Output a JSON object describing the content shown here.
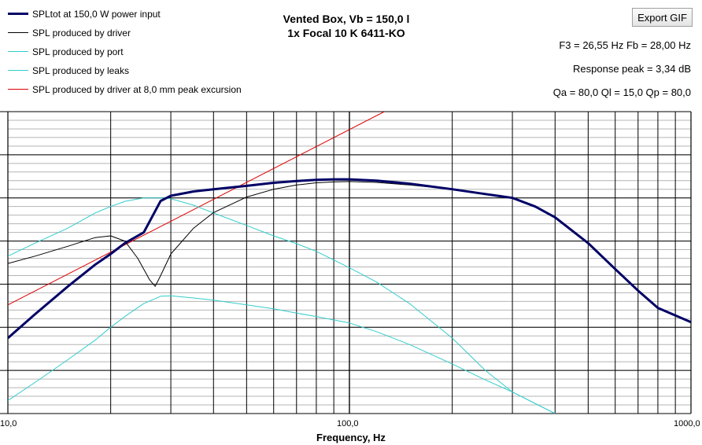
{
  "toolbar": {
    "export_label": "Export GIF"
  },
  "header": {
    "title_line1": "Vented Box, Vb = 150,0 l",
    "title_line2": "1x Focal 10 K 6411-KO",
    "info_line1": "F3 = 26,55 Hz  Fb = 28,00 Hz",
    "info_line2": "Response peak = 3,34 dB",
    "info_line3": "Qa = 80,0  Ql = 15,0  Qp = 80,0"
  },
  "legend": [
    {
      "label": "SPLtot at 150,0 W power input",
      "color": "#000066"
    },
    {
      "label": "SPL produced by driver",
      "color": "#000000"
    },
    {
      "label": "SPL produced by port",
      "color": "#33cccc"
    },
    {
      "label": "SPL produced by leaks",
      "color": "#33cccc"
    },
    {
      "label": "SPL produced by driver at 8,0 mm peak excursion",
      "color": "#dd0000"
    }
  ],
  "chart_data": {
    "type": "line",
    "xscale": "log",
    "xlim": [
      10,
      1000
    ],
    "xlabel": "Frequency, Hz",
    "xtick_labels": [
      "10,0",
      "100,0",
      "1000,0"
    ],
    "y_axis": "relative level, tick labels not visible",
    "ylim": [
      0,
      7
    ],
    "grid": true,
    "series": [
      {
        "name": "SPLtot at 150,0 W power input",
        "color": "#000066",
        "x": [
          10,
          12,
          15,
          18,
          20,
          22,
          25,
          28,
          30,
          35,
          40,
          50,
          60,
          70,
          80,
          90,
          100,
          120,
          150,
          200,
          250,
          300,
          350,
          400,
          500,
          600,
          700,
          800,
          1000
        ],
        "y": [
          1.75,
          2.3,
          2.95,
          3.45,
          3.7,
          3.95,
          4.2,
          4.93,
          5.05,
          5.15,
          5.2,
          5.28,
          5.35,
          5.39,
          5.42,
          5.43,
          5.43,
          5.4,
          5.33,
          5.2,
          5.09,
          5.0,
          4.8,
          4.55,
          3.95,
          3.35,
          2.85,
          2.45,
          2.12
        ]
      },
      {
        "name": "SPL produced by driver",
        "color": "#000000",
        "x": [
          10,
          12,
          15,
          18,
          20,
          22,
          24,
          26,
          27,
          28,
          30,
          35,
          40,
          50,
          60,
          70,
          80,
          90,
          100,
          120,
          150,
          200,
          250,
          300,
          350,
          400,
          500,
          600,
          700,
          800,
          1000
        ],
        "y": [
          3.48,
          3.65,
          3.88,
          4.08,
          4.12,
          4.0,
          3.6,
          3.1,
          2.95,
          3.2,
          3.7,
          4.3,
          4.66,
          5.02,
          5.2,
          5.3,
          5.35,
          5.37,
          5.38,
          5.36,
          5.3,
          5.2,
          5.09,
          5.0,
          4.8,
          4.55,
          3.95,
          3.35,
          2.85,
          2.45,
          2.12
        ]
      },
      {
        "name": "SPL produced by port",
        "color": "#33cccc",
        "x": [
          10,
          12,
          15,
          18,
          20,
          22,
          25,
          28,
          30,
          35,
          40,
          50,
          60,
          70,
          80,
          100,
          120,
          150,
          200,
          250,
          300,
          400
        ],
        "y": [
          3.65,
          3.95,
          4.3,
          4.65,
          4.8,
          4.92,
          5.0,
          5.0,
          4.98,
          4.83,
          4.65,
          4.36,
          4.12,
          3.94,
          3.76,
          3.38,
          3.05,
          2.55,
          1.75,
          1.0,
          0.5,
          0.0
        ]
      },
      {
        "name": "SPL produced by leaks",
        "color": "#33cccc",
        "x": [
          10,
          12,
          15,
          18,
          20,
          22,
          25,
          28,
          30,
          35,
          40,
          50,
          60,
          70,
          80,
          100,
          120,
          150,
          200,
          250,
          300,
          400
        ],
        "y": [
          0.3,
          0.72,
          1.25,
          1.7,
          2.0,
          2.25,
          2.55,
          2.72,
          2.73,
          2.68,
          2.63,
          2.52,
          2.43,
          2.33,
          2.25,
          2.1,
          1.9,
          1.6,
          1.15,
          0.78,
          0.5,
          0.0
        ]
      },
      {
        "name": "SPL produced by driver at 8,0 mm peak excursion",
        "color": "#dd0000",
        "x": [
          10,
          126.5
        ],
        "y": [
          2.52,
          7.0
        ]
      }
    ]
  }
}
